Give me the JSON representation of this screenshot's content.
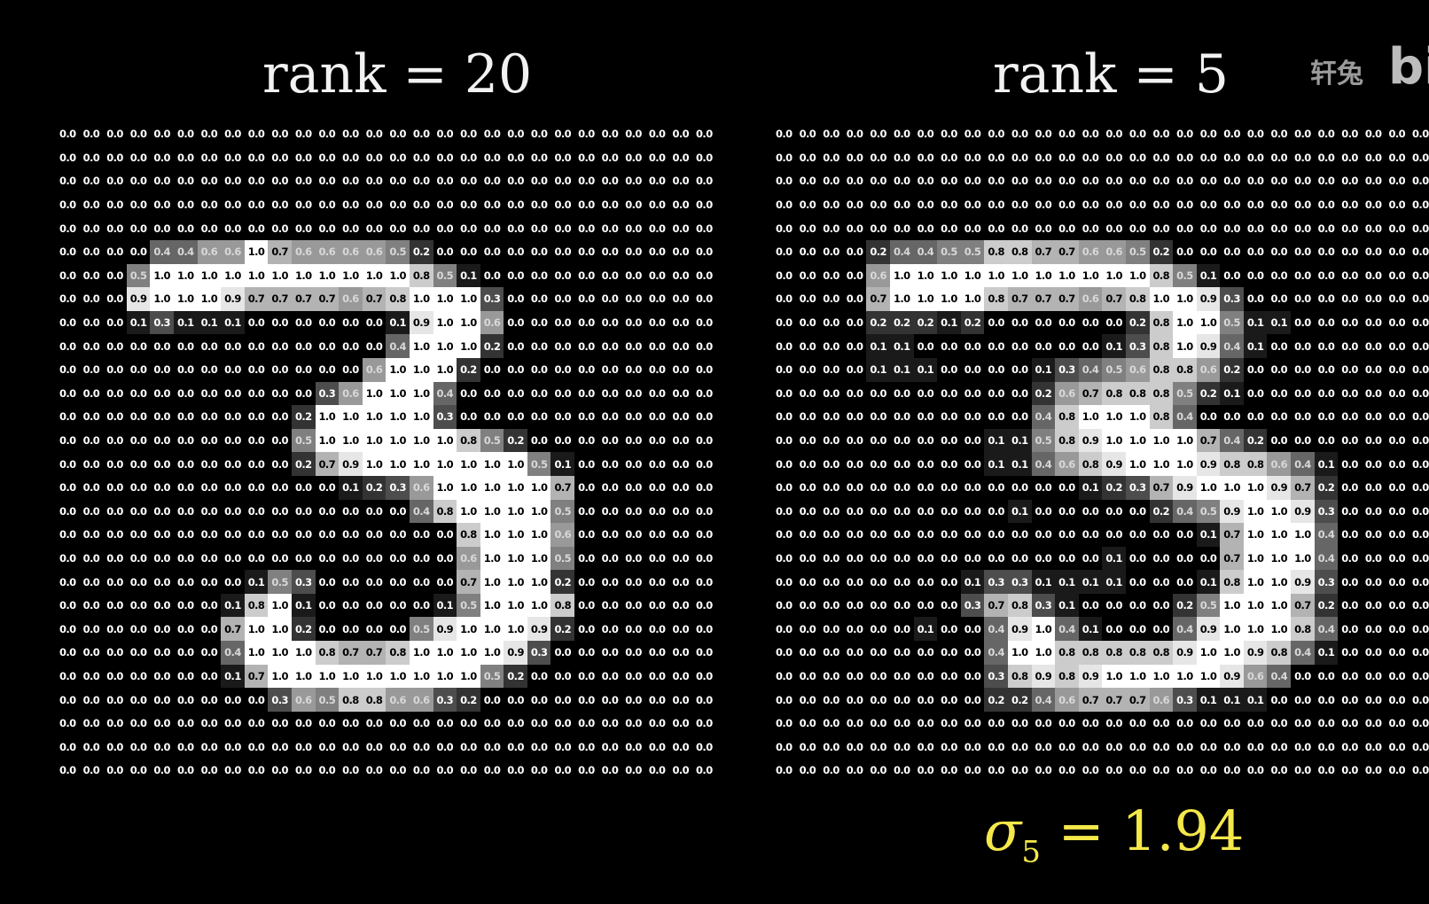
{
  "left_panel": {
    "title": "rank = 20",
    "matrix": [
      "0.0 0.0 0.0 0.0 0.0 0.0 0.0 0.0 0.0 0.0 0.0 0.0 0.0 0.0 0.0 0.0 0.0 0.0 0.0 0.0 0.0 0.0 0.0 0.0 0.0 0.0 0.0 0.0",
      "0.0 0.0 0.0 0.0 0.0 0.0 0.0 0.0 0.0 0.0 0.0 0.0 0.0 0.0 0.0 0.0 0.0 0.0 0.0 0.0 0.0 0.0 0.0 0.0 0.0 0.0 0.0 0.0",
      "0.0 0.0 0.0 0.0 0.0 0.0 0.0 0.0 0.0 0.0 0.0 0.0 0.0 0.0 0.0 0.0 0.0 0.0 0.0 0.0 0.0 0.0 0.0 0.0 0.0 0.0 0.0 0.0",
      "0.0 0.0 0.0 0.0 0.0 0.0 0.0 0.0 0.0 0.0 0.0 0.0 0.0 0.0 0.0 0.0 0.0 0.0 0.0 0.0 0.0 0.0 0.0 0.0 0.0 0.0 0.0 0.0",
      "0.0 0.0 0.0 0.0 0.0 0.0 0.0 0.0 0.0 0.0 0.0 0.0 0.0 0.0 0.0 0.0 0.0 0.0 0.0 0.0 0.0 0.0 0.0 0.0 0.0 0.0 0.0 0.0",
      "0.0 0.0 0.0 0.0 0.4 0.4 0.6 0.6 1.0 0.7 0.6 0.6 0.6 0.6 0.5 0.2 0.0 0.0 0.0 0.0 0.0 0.0 0.0 0.0 0.0 0.0 0.0 0.0",
      "0.0 0.0 0.0 0.5 1.0 1.0 1.0 1.0 1.0 1.0 1.0 1.0 1.0 1.0 1.0 0.8 0.5 0.1 0.0 0.0 0.0 0.0 0.0 0.0 0.0 0.0 0.0 0.0",
      "0.0 0.0 0.0 0.9 1.0 1.0 1.0 0.9 0.7 0.7 0.7 0.7 0.6 0.7 0.8 1.0 1.0 1.0 0.3 0.0 0.0 0.0 0.0 0.0 0.0 0.0 0.0 0.0",
      "0.0 0.0 0.0 0.1 0.3 0.1 0.1 0.1 0.0 0.0 0.0 0.0 0.0 0.0 0.1 0.9 1.0 1.0 0.6 0.0 0.0 0.0 0.0 0.0 0.0 0.0 0.0 0.0",
      "0.0 0.0 0.0 0.0 0.0 0.0 0.0 0.0 0.0 0.0 0.0 0.0 0.0 0.0 0.4 1.0 1.0 1.0 0.2 0.0 0.0 0.0 0.0 0.0 0.0 0.0 0.0 0.0",
      "0.0 0.0 0.0 0.0 0.0 0.0 0.0 0.0 0.0 0.0 0.0 0.0 0.0 0.6 1.0 1.0 1.0 0.2 0.0 0.0 0.0 0.0 0.0 0.0 0.0 0.0 0.0 0.0",
      "0.0 0.0 0.0 0.0 0.0 0.0 0.0 0.0 0.0 0.0 0.0 0.3 0.6 1.0 1.0 1.0 0.4 0.0 0.0 0.0 0.0 0.0 0.0 0.0 0.0 0.0 0.0 0.0",
      "0.0 0.0 0.0 0.0 0.0 0.0 0.0 0.0 0.0 0.0 0.2 1.0 1.0 1.0 1.0 1.0 0.3 0.0 0.0 0.0 0.0 0.0 0.0 0.0 0.0 0.0 0.0 0.0",
      "0.0 0.0 0.0 0.0 0.0 0.0 0.0 0.0 0.0 0.0 0.5 1.0 1.0 1.0 1.0 1.0 1.0 0.8 0.5 0.2 0.0 0.0 0.0 0.0 0.0 0.0 0.0 0.0",
      "0.0 0.0 0.0 0.0 0.0 0.0 0.0 0.0 0.0 0.0 0.2 0.7 0.9 1.0 1.0 1.0 1.0 1.0 1.0 1.0 0.5 0.1 0.0 0.0 0.0 0.0 0.0 0.0",
      "0.0 0.0 0.0 0.0 0.0 0.0 0.0 0.0 0.0 0.0 0.0 0.0 0.1 0.2 0.3 0.6 1.0 1.0 1.0 1.0 1.0 0.7 0.0 0.0 0.0 0.0 0.0 0.0",
      "0.0 0.0 0.0 0.0 0.0 0.0 0.0 0.0 0.0 0.0 0.0 0.0 0.0 0.0 0.0 0.4 0.8 1.0 1.0 1.0 1.0 0.5 0.0 0.0 0.0 0.0 0.0 0.0",
      "0.0 0.0 0.0 0.0 0.0 0.0 0.0 0.0 0.0 0.0 0.0 0.0 0.0 0.0 0.0 0.0 0.0 0.8 1.0 1.0 1.0 0.6 0.0 0.0 0.0 0.0 0.0 0.0",
      "0.0 0.0 0.0 0.0 0.0 0.0 0.0 0.0 0.0 0.0 0.0 0.0 0.0 0.0 0.0 0.0 0.0 0.6 1.0 1.0 1.0 0.5 0.0 0.0 0.0 0.0 0.0 0.0",
      "0.0 0.0 0.0 0.0 0.0 0.0 0.0 0.0 0.1 0.5 0.3 0.0 0.0 0.0 0.0 0.0 0.0 0.7 1.0 1.0 1.0 0.2 0.0 0.0 0.0 0.0 0.0 0.0",
      "0.0 0.0 0.0 0.0 0.0 0.0 0.0 0.1 0.8 1.0 0.1 0.0 0.0 0.0 0.0 0.0 0.1 0.5 1.0 1.0 1.0 0.8 0.0 0.0 0.0 0.0 0.0 0.0",
      "0.0 0.0 0.0 0.0 0.0 0.0 0.0 0.7 1.0 1.0 0.2 0.0 0.0 0.0 0.0 0.5 0.9 1.0 1.0 1.0 0.9 0.2 0.0 0.0 0.0 0.0 0.0 0.0",
      "0.0 0.0 0.0 0.0 0.0 0.0 0.0 0.4 1.0 1.0 1.0 0.8 0.7 0.7 0.8 1.0 1.0 1.0 1.0 0.9 0.3 0.0 0.0 0.0 0.0 0.0 0.0 0.0",
      "0.0 0.0 0.0 0.0 0.0 0.0 0.0 0.1 0.7 1.0 1.0 1.0 1.0 1.0 1.0 1.0 1.0 1.0 0.5 0.2 0.0 0.0 0.0 0.0 0.0 0.0 0.0 0.0",
      "0.0 0.0 0.0 0.0 0.0 0.0 0.0 0.0 0.0 0.3 0.6 0.5 0.8 0.8 0.6 0.6 0.3 0.2 0.0 0.0 0.0 0.0 0.0 0.0 0.0 0.0 0.0 0.0",
      "0.0 0.0 0.0 0.0 0.0 0.0 0.0 0.0 0.0 0.0 0.0 0.0 0.0 0.0 0.0 0.0 0.0 0.0 0.0 0.0 0.0 0.0 0.0 0.0 0.0 0.0 0.0 0.0",
      "0.0 0.0 0.0 0.0 0.0 0.0 0.0 0.0 0.0 0.0 0.0 0.0 0.0 0.0 0.0 0.0 0.0 0.0 0.0 0.0 0.0 0.0 0.0 0.0 0.0 0.0 0.0 0.0",
      "0.0 0.0 0.0 0.0 0.0 0.0 0.0 0.0 0.0 0.0 0.0 0.0 0.0 0.0 0.0 0.0 0.0 0.0 0.0 0.0 0.0 0.0 0.0 0.0 0.0 0.0 0.0 0.0"
    ]
  },
  "right_panel": {
    "title": "rank = 5",
    "matrix": [
      "0.0 0.0 0.0 0.0 0.0 0.0 0.0 0.0 0.0 0.0 0.0 0.0 0.0 0.0 0.0 0.0 0.0 0.0 0.0 0.0 0.0 0.0 0.0 0.0 0.0 0.0 0.0 0.0",
      "0.0 0.0 0.0 0.0 0.0 0.0 0.0 0.0 0.0 0.0 0.0 0.0 0.0 0.0 0.0 0.0 0.0 0.0 0.0 0.0 0.0 0.0 0.0 0.0 0.0 0.0 0.0 0.0",
      "0.0 0.0 0.0 0.0 0.0 0.0 0.0 0.0 0.0 0.0 0.0 0.0 0.0 0.0 0.0 0.0 0.0 0.0 0.0 0.0 0.0 0.0 0.0 0.0 0.0 0.0 0.0 0.0",
      "0.0 0.0 0.0 0.0 0.0 0.0 0.0 0.0 0.0 0.0 0.0 0.0 0.0 0.0 0.0 0.0 0.0 0.0 0.0 0.0 0.0 0.0 0.0 0.0 0.0 0.0 0.0 0.0",
      "0.0 0.0 0.0 0.0 0.0 0.0 0.0 0.0 0.0 0.0 0.0 0.0 0.0 0.0 0.0 0.0 0.0 0.0 0.0 0.0 0.0 0.0 0.0 0.0 0.0 0.0 0.0 0.0",
      "0.0 0.0 0.0 0.0 0.2 0.4 0.4 0.5 0.5 0.8 0.8 0.7 0.7 0.6 0.6 0.5 0.2 0.0 0.0 0.0 0.0 0.0 0.0 0.0 0.0 0.0 0.0 0.0",
      "0.0 0.0 0.0 0.0 0.6 1.0 1.0 1.0 1.0 1.0 1.0 1.0 1.0 1.0 1.0 1.0 0.8 0.5 0.1 0.0 0.0 0.0 0.0 0.0 0.0 0.0 0.0 0.0",
      "0.0 0.0 0.0 0.0 0.7 1.0 1.0 1.0 1.0 0.8 0.7 0.7 0.7 0.6 0.7 0.8 1.0 1.0 0.9 0.3 0.0 0.0 0.0 0.0 0.0 0.0 0.0 0.0",
      "0.0 0.0 0.0 0.0 0.2 0.2 0.2 0.1 0.2 0.0 0.0 0.0 0.0 0.0 0.0 0.2 0.8 1.0 1.0 0.5 0.1 0.1 0.0 0.0 0.0 0.0 0.0 0.0",
      "0.0 0.0 0.0 0.0 0.1 0.1 0.0 0.0 0.0 0.0 0.0 0.0 0.0 0.0 0.1 0.3 0.8 1.0 0.9 0.4 0.1 0.0 0.0 0.0 0.0 0.0 0.0 0.0",
      "0.0 0.0 0.0 0.0 0.1 0.1 0.1 0.0 0.0 0.0 0.0 0.1 0.3 0.4 0.5 0.6 0.8 0.8 0.6 0.2 0.0 0.0 0.0 0.0 0.0 0.0 0.0 0.0",
      "0.0 0.0 0.0 0.0 0.0 0.0 0.0 0.0 0.0 0.0 0.0 0.2 0.6 0.7 0.8 0.8 0.8 0.5 0.2 0.1 0.0 0.0 0.0 0.0 0.0 0.0 0.0 0.0",
      "0.0 0.0 0.0 0.0 0.0 0.0 0.0 0.0 0.0 0.0 0.0 0.4 0.8 1.0 1.0 1.0 0.8 0.4 0.0 0.0 0.0 0.0 0.0 0.0 0.0 0.0 0.0 0.0",
      "0.0 0.0 0.0 0.0 0.0 0.0 0.0 0.0 0.0 0.1 0.1 0.5 0.8 0.9 1.0 1.0 1.0 1.0 0.7 0.4 0.2 0.0 0.0 0.0 0.0 0.0 0.0 0.0",
      "0.0 0.0 0.0 0.0 0.0 0.0 0.0 0.0 0.0 0.1 0.1 0.4 0.6 0.8 0.9 1.0 1.0 1.0 0.9 0.8 0.8 0.6 0.4 0.1 0.0 0.0 0.0 0.0",
      "0.0 0.0 0.0 0.0 0.0 0.0 0.0 0.0 0.0 0.0 0.0 0.0 0.0 0.1 0.2 0.3 0.7 0.9 1.0 1.0 1.0 0.9 0.7 0.2 0.0 0.0 0.0 0.0",
      "0.0 0.0 0.0 0.0 0.0 0.0 0.0 0.0 0.0 0.0 0.1 0.0 0.0 0.0 0.0 0.0 0.2 0.4 0.5 0.9 1.0 1.0 0.9 0.3 0.0 0.0 0.0 0.0",
      "0.0 0.0 0.0 0.0 0.0 0.0 0.0 0.0 0.0 0.0 0.0 0.0 0.0 0.0 0.0 0.0 0.0 0.0 0.1 0.7 1.0 1.0 1.0 0.4 0.0 0.0 0.0 0.0",
      "0.0 0.0 0.0 0.0 0.0 0.0 0.0 0.0 0.0 0.0 0.0 0.0 0.0 0.0 0.1 0.0 0.0 0.0 0.0 0.7 1.0 1.0 1.0 0.4 0.0 0.0 0.0 0.0",
      "0.0 0.0 0.0 0.0 0.0 0.0 0.0 0.0 0.1 0.3 0.3 0.1 0.1 0.1 0.1 0.0 0.0 0.0 0.1 0.8 1.0 1.0 0.9 0.3 0.0 0.0 0.0 0.0",
      "0.0 0.0 0.0 0.0 0.0 0.0 0.0 0.0 0.3 0.7 0.8 0.3 0.1 0.0 0.0 0.0 0.0 0.2 0.5 1.0 1.0 1.0 0.7 0.2 0.0 0.0 0.0 0.0",
      "0.0 0.0 0.0 0.0 0.0 0.0 0.1 0.0 0.0 0.4 0.9 1.0 0.4 0.1 0.0 0.0 0.0 0.4 0.9 1.0 1.0 1.0 0.8 0.4 0.0 0.0 0.0 0.0",
      "0.0 0.0 0.0 0.0 0.0 0.0 0.0 0.0 0.0 0.4 1.0 1.0 0.8 0.8 0.8 0.8 0.8 0.9 1.0 1.0 0.9 0.8 0.4 0.1 0.0 0.0 0.0 0.0",
      "0.0 0.0 0.0 0.0 0.0 0.0 0.0 0.0 0.0 0.3 0.8 0.9 0.8 0.9 1.0 1.0 1.0 1.0 1.0 0.9 0.6 0.4 0.0 0.0 0.0 0.0 0.0 0.0",
      "0.0 0.0 0.0 0.0 0.0 0.0 0.0 0.0 0.0 0.2 0.2 0.4 0.6 0.7 0.7 0.7 0.6 0.3 0.1 0.1 0.1 0.0 0.0 0.0 0.0 0.0 0.0 0.0",
      "0.0 0.0 0.0 0.0 0.0 0.0 0.0 0.0 0.0 0.0 0.0 0.0 0.0 0.0 0.0 0.0 0.0 0.0 0.0 0.0 0.0 0.0 0.0 0.0 0.0 0.0 0.0 0.0",
      "0.0 0.0 0.0 0.0 0.0 0.0 0.0 0.0 0.0 0.0 0.0 0.0 0.0 0.0 0.0 0.0 0.0 0.0 0.0 0.0 0.0 0.0 0.0 0.0 0.0 0.0 0.0 0.0",
      "0.0 0.0 0.0 0.0 0.0 0.0 0.0 0.0 0.0 0.0 0.0 0.0 0.0 0.0 0.0 0.0 0.0 0.0 0.0 0.0 0.0 0.0 0.0 0.0 0.0 0.0 0.0 0.0"
    ]
  },
  "singular_value": {
    "symbol": "σ",
    "index": "5",
    "equals_value": " = 1.94"
  },
  "watermark": {
    "text": "轩兔",
    "logo_text": "bili"
  },
  "colors": {
    "background": "#000000",
    "title": "#f2f2f2",
    "sigma_label": "#f4e84a",
    "cell_text_light": "#ffffff",
    "cell_text_dark": "#000000"
  }
}
